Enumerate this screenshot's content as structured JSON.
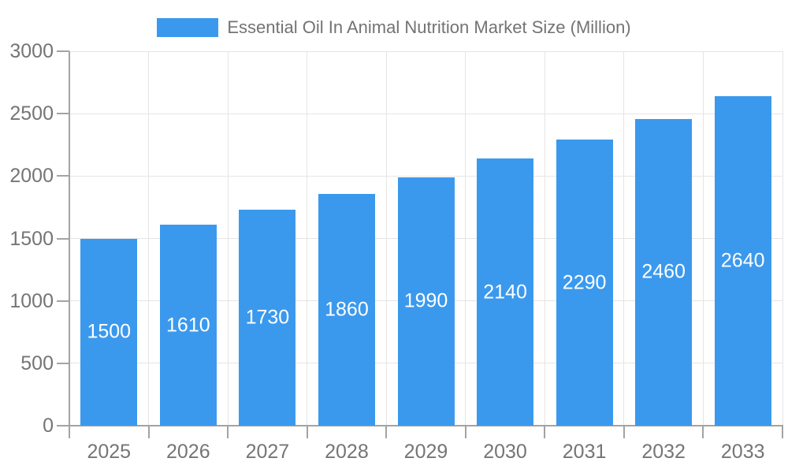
{
  "chart_data": {
    "type": "bar",
    "title": "Essential Oil In Animal Nutrition Market Size (Million)",
    "categories": [
      "2025",
      "2026",
      "2027",
      "2028",
      "2029",
      "2030",
      "2031",
      "2032",
      "2033"
    ],
    "values": [
      1500,
      1610,
      1730,
      1860,
      1990,
      2140,
      2290,
      2460,
      2640
    ],
    "xlabel": "",
    "ylabel": "",
    "ylim": [
      0,
      3000
    ],
    "yticks": [
      0,
      500,
      1000,
      1500,
      2000,
      2500,
      3000
    ],
    "grid": true,
    "legend_position": "top",
    "bar_label_position": "inside-center",
    "colors": {
      "bar": "#3b99ed",
      "bar_label": "#ffffff",
      "grid_line": "#e5e5e5",
      "axis_line": "#a3a3a3",
      "tick_text": "#757575",
      "title_text": "#737373",
      "background": "#ffffff"
    }
  }
}
